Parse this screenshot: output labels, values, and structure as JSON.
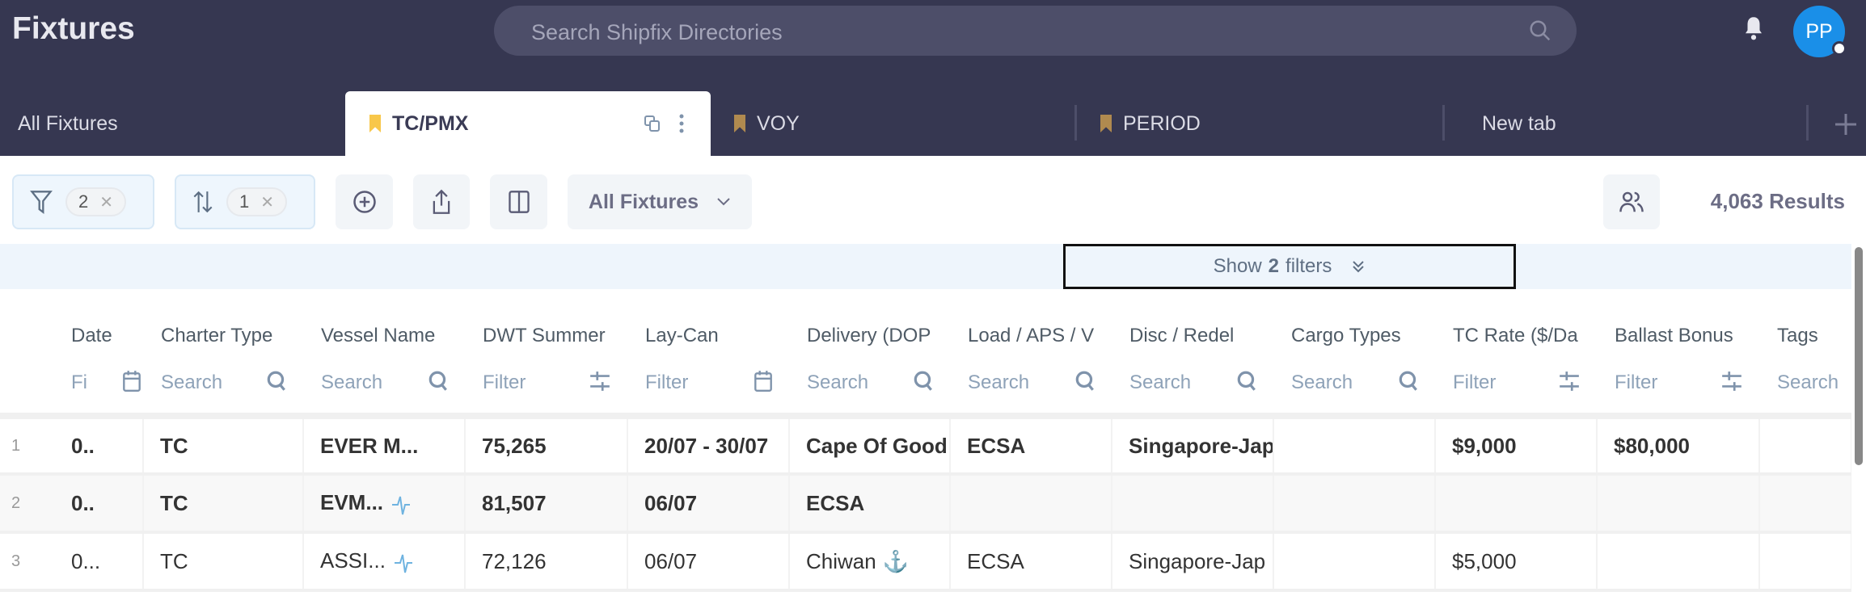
{
  "app": {
    "title": "Fixtures",
    "search_placeholder": "Search Shipfix Directories",
    "avatar_initials": "PP"
  },
  "tabs": [
    {
      "label": "All Fixtures",
      "bookmarked": false
    },
    {
      "label": "TC/PMX",
      "bookmarked": true,
      "active": true,
      "bookmark_color": "#f8c74a"
    },
    {
      "label": "VOY",
      "bookmarked": true,
      "bookmark_color": "#b08a4f"
    },
    {
      "label": "PERIOD",
      "bookmarked": true,
      "bookmark_color": "#b08a4f"
    },
    {
      "label": "New tab",
      "bookmarked": false
    }
  ],
  "toolbar": {
    "filter_count": "2",
    "sort_count": "1",
    "view_select": "All Fixtures",
    "results": "4,063 Results"
  },
  "filter_banner": {
    "prefix": "Show",
    "count": "2",
    "suffix": "filters"
  },
  "columns": [
    {
      "label": "Date",
      "filter": "Fi",
      "icon": "calendar-icon"
    },
    {
      "label": "Charter Type",
      "filter": "Search",
      "icon": "search-icon"
    },
    {
      "label": "Vessel Name",
      "filter": "Search",
      "icon": "search-icon"
    },
    {
      "label": "DWT Summer",
      "filter": "Filter",
      "icon": "sliders-icon"
    },
    {
      "label": "Lay-Can",
      "filter": "Filter",
      "icon": "calendar-icon"
    },
    {
      "label": "Delivery (DOP",
      "filter": "Search",
      "icon": "search-icon"
    },
    {
      "label": "Load / APS / V",
      "filter": "Search",
      "icon": "search-icon"
    },
    {
      "label": "Disc / Redel",
      "filter": "Search",
      "icon": "search-icon"
    },
    {
      "label": "Cargo Types",
      "filter": "Search",
      "icon": "search-icon"
    },
    {
      "label": "TC Rate ($/Da",
      "filter": "Filter",
      "icon": "sliders-icon"
    },
    {
      "label": "Ballast Bonus",
      "filter": "Filter",
      "icon": "sliders-icon"
    },
    {
      "label": "Tags",
      "filter": "Search",
      "icon": ""
    }
  ],
  "rows": [
    {
      "num": "1",
      "bold": true,
      "cells": [
        "0..",
        "TC",
        "EVER M...",
        "75,265",
        "20/07 - 30/07",
        "Cape Of Good",
        "ECSA",
        "Singapore-Jap",
        "",
        "$9,000",
        "$80,000",
        ""
      ],
      "vessel_icon": false,
      "delivery_icon": false
    },
    {
      "num": "2",
      "bold": true,
      "cells": [
        "0..",
        "TC",
        "EVM...",
        "81,507",
        "06/07",
        "ECSA",
        "",
        "",
        "",
        "",
        "",
        ""
      ],
      "vessel_icon": true,
      "delivery_icon": false
    },
    {
      "num": "3",
      "bold": false,
      "cells": [
        "0...",
        "TC",
        "ASSI...",
        "72,126",
        "06/07",
        "Chiwan",
        "ECSA",
        "Singapore-Jap",
        "",
        "$5,000",
        "",
        ""
      ],
      "vessel_icon": true,
      "delivery_icon": true
    }
  ]
}
